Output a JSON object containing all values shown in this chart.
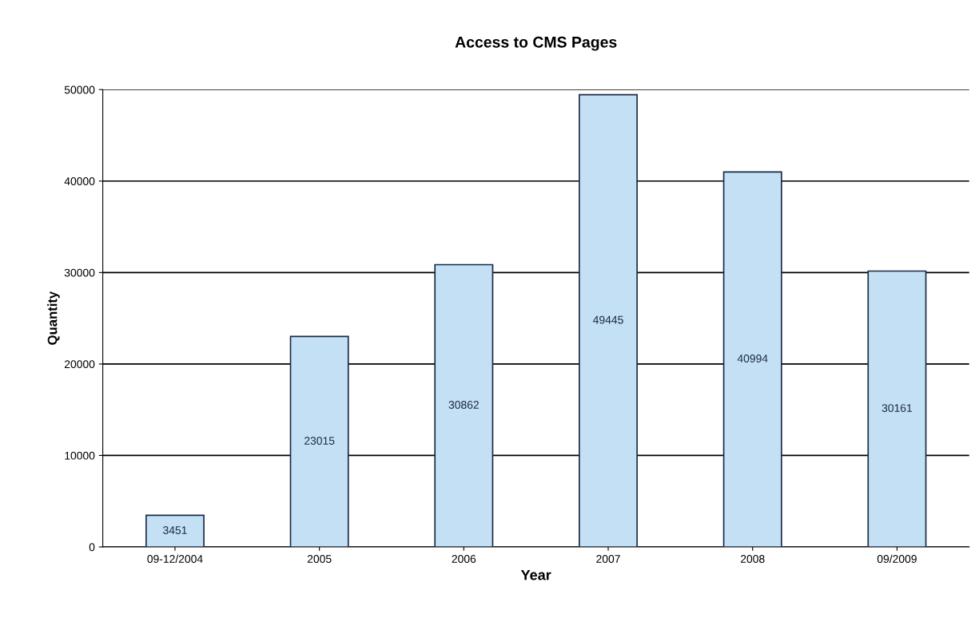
{
  "chart_data": {
    "type": "bar",
    "title": "Access to CMS Pages",
    "xlabel": "Year",
    "ylabel": "Quantity",
    "categories": [
      "09-12/2004",
      "2005",
      "2006",
      "2007",
      "2008",
      "09/2009"
    ],
    "values": [
      3451,
      23015,
      30862,
      49445,
      40994,
      30161
    ],
    "color": "#c4e0f4",
    "ylim": [
      0,
      50000
    ],
    "yticks": [
      0,
      10000,
      20000,
      30000,
      40000,
      50000
    ],
    "grid": "y",
    "data_labels": true
  }
}
